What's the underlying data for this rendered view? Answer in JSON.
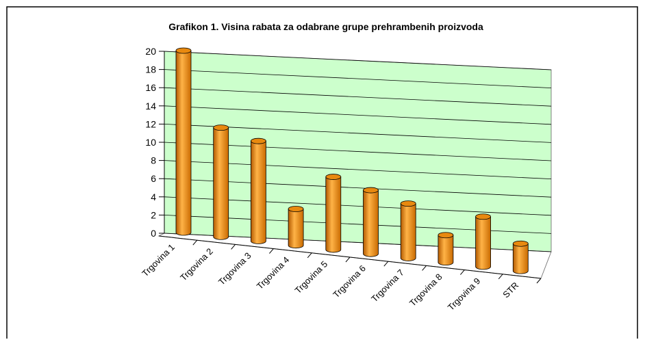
{
  "chart_data": {
    "type": "bar3d",
    "title": "Grafikon 1. Visina rabata za odabrane grupe prehrambenih proizvoda",
    "categories": [
      "Trgovina 1",
      "Trgovina 2",
      "Trgovina 3",
      "Trgovina 4",
      "Trgovina 5",
      "Trgovina 6",
      "Trgovina 7",
      "Trgovina 8",
      "Trgovina 9",
      "STR"
    ],
    "values": [
      20,
      12,
      11,
      4,
      8,
      7,
      6,
      3,
      5.5,
      3
    ],
    "color": "#f39a1e",
    "ylim": [
      0,
      20
    ],
    "yticks": [
      0,
      2,
      4,
      6,
      8,
      10,
      12,
      14,
      16,
      18,
      20
    ],
    "grid": true,
    "wall_color": "#ccffcc"
  }
}
